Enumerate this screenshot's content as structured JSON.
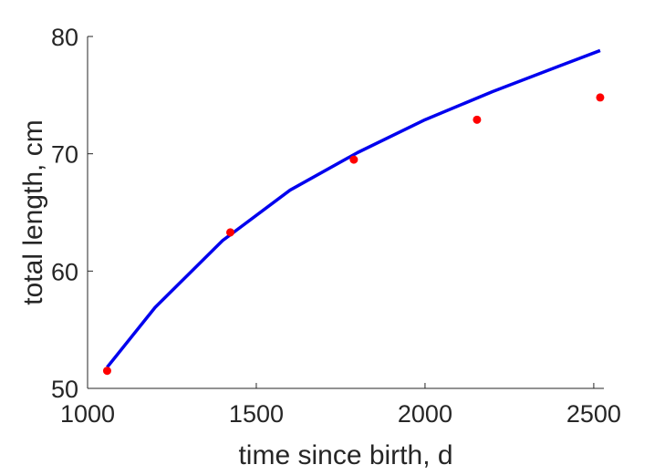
{
  "chart_data": {
    "type": "scatter",
    "title": "",
    "xlabel": "time since birth, d",
    "ylabel": "total length, cm",
    "xlim": [
      1000,
      2530
    ],
    "ylim": [
      50,
      80
    ],
    "xticks": [
      1000,
      1500,
      2000,
      2500
    ],
    "yticks": [
      50,
      60,
      70,
      80
    ],
    "grid": false,
    "series": [
      {
        "kind": "scatter",
        "color": "#ff0000",
        "x": [
          1058,
          1423,
          1789,
          2154,
          2519
        ],
        "y": [
          51.5,
          63.3,
          69.5,
          72.9,
          74.8
        ]
      },
      {
        "kind": "line",
        "color": "#0000ee",
        "x": [
          1058,
          1200,
          1400,
          1600,
          1800,
          2000,
          2200,
          2400,
          2519
        ],
        "y": [
          51.8,
          56.9,
          62.6,
          66.9,
          70.1,
          72.9,
          75.3,
          77.5,
          78.8
        ]
      }
    ]
  }
}
